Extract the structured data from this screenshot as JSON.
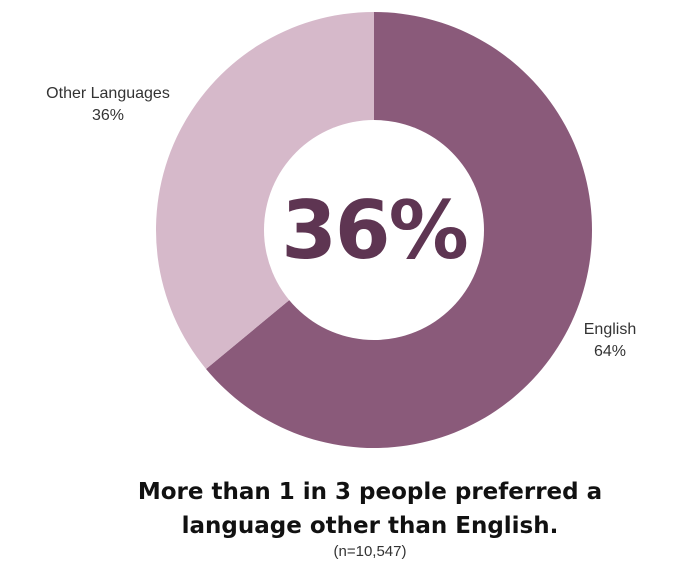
{
  "chart_data": {
    "type": "pie",
    "donut": true,
    "center_label": "36%",
    "slices": [
      {
        "label": "English",
        "value": 64,
        "value_label": "64%",
        "color": "#8a5a7a"
      },
      {
        "label": "Other Languages",
        "value": 36,
        "value_label": "36%",
        "color": "#d6b9ca"
      }
    ]
  },
  "colors": {
    "center_text": "#5e3552"
  },
  "caption": {
    "line1": "More than 1 in 3 people preferred a",
    "line2": "language other than English.",
    "sample": "(n=10,547)"
  }
}
